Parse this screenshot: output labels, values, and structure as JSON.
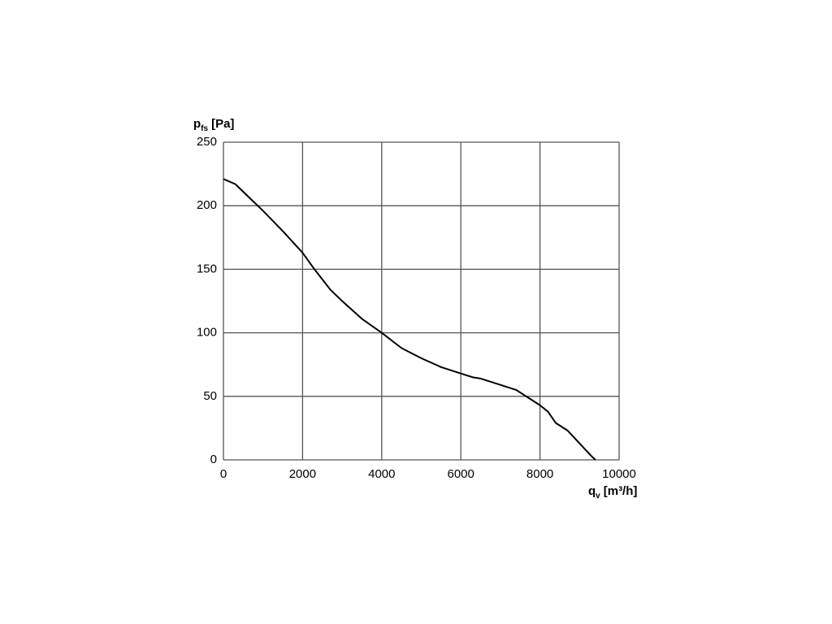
{
  "chart_data": {
    "type": "line",
    "y_label": {
      "symbol": "p",
      "subscript": "fs",
      "unit": "[Pa]"
    },
    "x_label": {
      "symbol": "q",
      "subscript": "v",
      "unit": "[m³/h]"
    },
    "x": [
      0,
      300,
      700,
      1000,
      1500,
      2000,
      2300,
      2700,
      3000,
      3500,
      4000,
      4500,
      5000,
      5500,
      6000,
      6300,
      6500,
      7000,
      7400,
      7700,
      8000,
      8200,
      8400,
      8700,
      9000,
      9300,
      9400
    ],
    "series": [
      {
        "color": "#000000",
        "values": [
          221,
          217,
          205,
          196,
          180,
          163,
          150,
          134,
          125,
          111,
          100,
          88,
          80,
          73,
          68,
          65,
          64,
          59,
          55,
          49,
          43,
          38,
          29,
          23,
          13,
          3,
          0
        ]
      }
    ],
    "xlim": [
      0,
      10000
    ],
    "xticks": [
      0,
      2000,
      4000,
      6000,
      8000,
      10000
    ],
    "ylim": [
      0,
      250
    ],
    "yticks": [
      0,
      50,
      100,
      150,
      200,
      250
    ],
    "grid": true
  }
}
